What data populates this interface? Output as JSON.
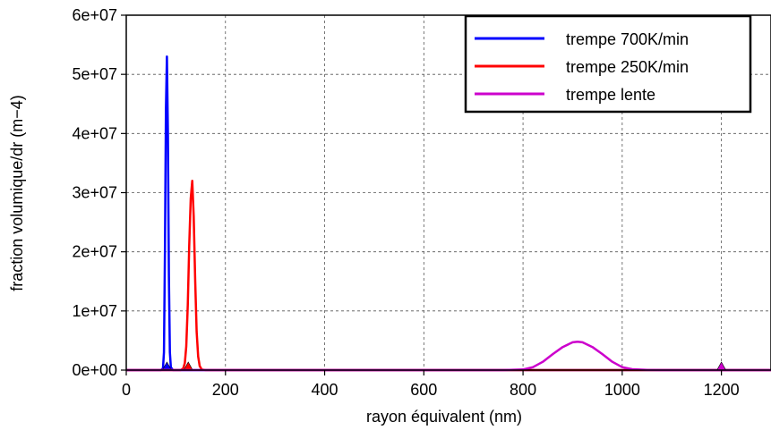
{
  "chart_data": {
    "type": "line",
    "title": "",
    "xlabel": "rayon équivalent (nm)",
    "ylabel": "fraction volumique/dr (m−4)",
    "xlim": [
      0,
      1300
    ],
    "ylim": [
      0,
      60000000
    ],
    "x_ticks": [
      0,
      200,
      400,
      600,
      800,
      1000,
      1200
    ],
    "x_tick_labels": [
      "0",
      "200",
      "400",
      "600",
      "800",
      "1000",
      "1200"
    ],
    "y_ticks": [
      0,
      10000000,
      20000000,
      30000000,
      40000000,
      50000000,
      60000000
    ],
    "y_tick_labels": [
      "0e+00",
      "1e+07",
      "2e+07",
      "3e+07",
      "4e+07",
      "5e+07",
      "6e+07"
    ],
    "grid": true,
    "grid_style": "dashed",
    "legend_position": "top-right",
    "series": [
      {
        "name": "trempe 700K/min",
        "color": "#0000ff",
        "x": [
          0,
          60,
          70,
          74,
          76,
          78,
          80,
          82,
          84,
          86,
          88,
          90,
          94,
          100,
          1300
        ],
        "y": [
          0,
          0,
          0,
          300000,
          3000000,
          20000000,
          44000000,
          53000000,
          40000000,
          16000000,
          3000000,
          500000,
          0,
          0,
          0
        ],
        "markers": [
          {
            "x": 82,
            "y": 0
          }
        ]
      },
      {
        "name": "trempe 250K/min",
        "color": "#ff0000",
        "x": [
          0,
          110,
          115,
          118,
          121,
          124,
          127,
          130,
          133,
          136,
          139,
          142,
          145,
          148,
          152,
          160,
          1300
        ],
        "y": [
          0,
          0,
          300000,
          1200000,
          4000000,
          11000000,
          21000000,
          29000000,
          32000000,
          26000000,
          15000000,
          6500000,
          2300000,
          700000,
          100000,
          0,
          0
        ],
        "markers": [
          {
            "x": 125,
            "y": 0
          }
        ]
      },
      {
        "name": "trempe lente",
        "color": "#cc00cc",
        "x": [
          0,
          760,
          800,
          820,
          840,
          860,
          880,
          900,
          910,
          920,
          940,
          960,
          980,
          1000,
          1020,
          1050,
          1080,
          1300
        ],
        "y": [
          0,
          0,
          100000,
          500000,
          1400000,
          2700000,
          3900000,
          4700000,
          4800000,
          4700000,
          3900000,
          2700000,
          1400000,
          500000,
          150000,
          30000,
          0,
          0
        ],
        "markers": [
          {
            "x": 1200,
            "y": 0
          }
        ]
      }
    ]
  }
}
